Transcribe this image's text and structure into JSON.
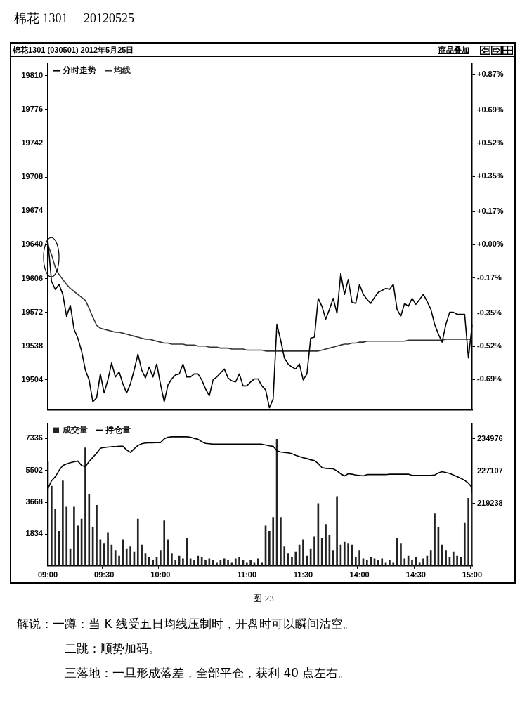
{
  "chart_data": [
    {
      "type": "line",
      "title": "棉花 1301　 20120525",
      "subtitle": "棉花1301 (030501) 2012年5月25日",
      "annotations": [
        "商品叠加"
      ],
      "categories": [
        null,
        null,
        null,
        null,
        null,
        null,
        null,
        null,
        null,
        null,
        null,
        null,
        null,
        null,
        null,
        null,
        null,
        null,
        null,
        null,
        null,
        null,
        null,
        null,
        null,
        null,
        null,
        null,
        null,
        null,
        null,
        null,
        null,
        null,
        null,
        null,
        null,
        null,
        null,
        null,
        null,
        null,
        null,
        null,
        null,
        null,
        null,
        null,
        null,
        null,
        null,
        null,
        null,
        null,
        null,
        null,
        null,
        null,
        null,
        null,
        null,
        null,
        null,
        null,
        null,
        null,
        null,
        null,
        null,
        null,
        null,
        null,
        null,
        null,
        null,
        null,
        null,
        null,
        null,
        null,
        null,
        null,
        null,
        null,
        null,
        null,
        null,
        null,
        null,
        null,
        null,
        null,
        null,
        null,
        null,
        null,
        null,
        null,
        null,
        null,
        null,
        null,
        null,
        null,
        null,
        null,
        null,
        null,
        null,
        null,
        null,
        null,
        null,
        null
      ],
      "ylim": [
        19474,
        19822
      ],
      "yticks": [
        19810,
        19776,
        19742,
        19708,
        19674,
        19640,
        19606,
        19572,
        19538,
        19504
      ],
      "y2lim": [
        -0.845,
        0.927
      ],
      "y2ticks": [
        {
          "value": 0.87,
          "label": "+0.87%"
        },
        {
          "value": 0.69,
          "label": "+0.69%"
        },
        {
          "value": 0.52,
          "label": "+0.52%"
        },
        {
          "value": 0.35,
          "label": "+0.35%"
        },
        {
          "value": 0.17,
          "label": "+0.17%"
        },
        {
          "value": 0,
          "label": "+0.00%"
        },
        {
          "value": -0.17,
          "label": "-0.17%"
        },
        {
          "value": -0.35,
          "label": "-0.35%"
        },
        {
          "value": -0.52,
          "label": "-0.52%"
        },
        {
          "value": -0.69,
          "label": "-0.69%"
        }
      ],
      "tick_labels": "y",
      "legend": "top left",
      "marker": "none",
      "grid": false,
      "series": [
        {
          "name": "分时走势",
          "color": "#000000",
          "values": [
            19645,
            19603,
            19595,
            19600,
            19590,
            19568,
            19579,
            19555,
            19546,
            19533,
            19514,
            19504,
            19482,
            19486,
            19510,
            19491,
            19504,
            19521,
            19507,
            19512,
            19500,
            19491,
            19500,
            19514,
            19530,
            19514,
            19506,
            19517,
            19507,
            19520,
            19500,
            19482,
            19499,
            19505,
            19509,
            19510,
            19520,
            19507,
            19507,
            19510,
            19510,
            19504,
            19495,
            19488,
            19504,
            19507,
            19511,
            19515,
            19506,
            19503,
            19502,
            19510,
            19498,
            19498,
            19502,
            19505,
            19505,
            19498,
            19494,
            19476,
            19485,
            19560,
            19544,
            19526,
            19520,
            19517,
            19515,
            19520,
            19504,
            19510,
            19546,
            19547,
            19586,
            19578,
            19565,
            19575,
            19586,
            19571,
            19611,
            19590,
            19605,
            19582,
            19581,
            19600,
            19590,
            19585,
            19581,
            19587,
            19592,
            19594,
            19596,
            19595,
            19600,
            19575,
            19568,
            19581,
            19578,
            19586,
            19580,
            19585,
            19590,
            19583,
            19575,
            19560,
            19550,
            19542,
            19560,
            19572,
            19572,
            19570,
            19570,
            19570,
            19526,
            19560
          ]
        },
        {
          "name": "均线",
          "color": "#333333",
          "values": [
            19640,
            19630,
            19617,
            19610,
            19605,
            19600,
            19596,
            19593,
            19590,
            19587,
            19584,
            19576,
            19567,
            19559,
            19556,
            19555,
            19554,
            19553,
            19552,
            19552,
            19551,
            19550,
            19549,
            19548,
            19547,
            19546,
            19545,
            19545,
            19544,
            19543,
            19542,
            19541,
            19541,
            19540,
            19540,
            19540,
            19540,
            19539,
            19539,
            19539,
            19538,
            19538,
            19538,
            19537,
            19537,
            19537,
            19536,
            19536,
            19536,
            19535,
            19535,
            19535,
            19535,
            19534,
            19534,
            19534,
            19534,
            19534,
            19533,
            19533,
            19533,
            19533,
            19533,
            19533,
            19533,
            19533,
            19533,
            19533,
            19533,
            19533,
            19533,
            19533,
            19533,
            19534,
            19535,
            19536,
            19537,
            19538,
            19539,
            19540,
            19540,
            19541,
            19541,
            19542,
            19542,
            19543,
            19543,
            19543,
            19543,
            19543,
            19543,
            19543,
            19543,
            19543,
            19543,
            19543,
            19544,
            19544,
            19544,
            19544,
            19544,
            19544,
            19544,
            19544,
            19544,
            19544,
            19545,
            19545,
            19545,
            19545,
            19545,
            19545,
            19545,
            19545
          ]
        }
      ]
    },
    {
      "type": "bar",
      "annotations": [
        "图 23",
        "解说：一蹲：当 K 线受五日均线压制时，开盘时可以瞬间沽空。",
        "二跳：顺势加码。",
        "三落地：一旦形成落差，全部平仓，获利 40 点左右。"
      ],
      "categories": [
        "09:00",
        null,
        null,
        null,
        null,
        null,
        null,
        null,
        null,
        null,
        null,
        null,
        null,
        null,
        null,
        "09:30",
        null,
        null,
        null,
        null,
        null,
        null,
        null,
        null,
        null,
        null,
        null,
        null,
        null,
        null,
        "10:00",
        null,
        null,
        null,
        null,
        null,
        null,
        null,
        null,
        null,
        null,
        null,
        null,
        null,
        null,
        null,
        null,
        null,
        null,
        null,
        null,
        null,
        null,
        "11:00",
        null,
        null,
        null,
        null,
        null,
        null,
        null,
        null,
        null,
        null,
        null,
        null,
        null,
        null,
        "11:30",
        null,
        null,
        null,
        null,
        null,
        null,
        null,
        null,
        null,
        null,
        null,
        null,
        null,
        null,
        "14:00",
        null,
        null,
        null,
        null,
        null,
        null,
        null,
        null,
        null,
        null,
        null,
        null,
        null,
        null,
        "14:30",
        null,
        null,
        null,
        null,
        null,
        null,
        null,
        null,
        null,
        null,
        null,
        null,
        null,
        null,
        "15:00"
      ],
      "ylim": [
        0,
        8220
      ],
      "yticks": [
        1834,
        3668,
        5502,
        7336
      ],
      "y2lim": [
        204040,
        238800
      ],
      "y2ticks": [
        219238,
        227107,
        234976
      ],
      "legend": "top left",
      "marker": "none",
      "grid": false,
      "series": [
        {
          "name": "成交量",
          "color": "#222222",
          "values": [
            6000,
            4600,
            3300,
            2000,
            4900,
            3400,
            1000,
            3400,
            2300,
            2700,
            6800,
            4100,
            2200,
            3500,
            1500,
            1300,
            1900,
            1200,
            900,
            600,
            1500,
            1000,
            1100,
            800,
            2700,
            1200,
            700,
            500,
            300,
            500,
            900,
            2600,
            1500,
            700,
            300,
            600,
            400,
            1600,
            400,
            300,
            600,
            500,
            300,
            400,
            300,
            200,
            300,
            400,
            300,
            200,
            400,
            500,
            300,
            200,
            300,
            200,
            400,
            200,
            2300,
            2000,
            2800,
            7300,
            2800,
            1100,
            700,
            500,
            800,
            1200,
            1500,
            600,
            1000,
            1700,
            3600,
            1600,
            2400,
            1800,
            900,
            4000,
            1200,
            1400,
            1300,
            1200,
            500,
            900,
            400,
            300,
            500,
            400,
            300,
            400,
            200,
            300,
            200,
            1600,
            1300,
            400,
            600,
            300,
            500,
            200,
            400,
            600,
            900,
            3000,
            2200,
            1200,
            900,
            500,
            800,
            600,
            500,
            2500,
            3900,
            4200
          ]
        },
        {
          "name": "持仓量",
          "type": "line",
          "axis": "y2",
          "color": "#000000",
          "values": [
            222800,
            224800,
            225800,
            227300,
            228500,
            228900,
            229200,
            229400,
            229600,
            228500,
            228200,
            229500,
            230500,
            231500,
            232700,
            232900,
            233000,
            233100,
            233100,
            233200,
            233200,
            232300,
            231700,
            232600,
            233400,
            233800,
            234000,
            234050,
            234050,
            234100,
            234100,
            235000,
            235400,
            235500,
            235500,
            235500,
            235500,
            235500,
            235400,
            235100,
            234900,
            234300,
            233900,
            233800,
            233700,
            233700,
            233700,
            233700,
            233700,
            233700,
            233700,
            233700,
            233700,
            233700,
            233700,
            233700,
            233700,
            233700,
            233500,
            233300,
            233200,
            232100,
            231800,
            231700,
            231600,
            231400,
            231000,
            230700,
            230400,
            230200,
            229900,
            229700,
            229000,
            228000,
            227800,
            227750,
            227700,
            227200,
            226500,
            226000,
            226500,
            226400,
            226200,
            226100,
            226000,
            226300,
            226300,
            226300,
            226300,
            226300,
            226300,
            226400,
            226400,
            226400,
            226400,
            226400,
            226400,
            226100,
            226100,
            226100,
            226100,
            226100,
            226100,
            226200,
            226700,
            227000,
            226800,
            226600,
            226200,
            225800,
            225400,
            224900,
            224200,
            223100
          ]
        }
      ]
    }
  ]
}
